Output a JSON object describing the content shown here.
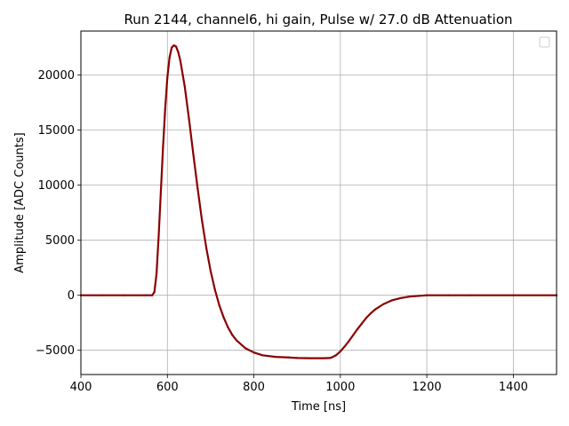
{
  "chart_data": {
    "type": "line",
    "title": "Run 2144, channel6, hi gain, Pulse w/ 27.0 dB Attenuation",
    "xlabel": "Time [ns]",
    "ylabel": "Amplitude [ADC Counts]",
    "xlim": [
      400,
      1500
    ],
    "ylim": [
      -7200,
      24000
    ],
    "x_ticks": [
      400,
      600,
      800,
      1000,
      1200,
      1400
    ],
    "y_ticks": [
      -5000,
      0,
      5000,
      10000,
      15000,
      20000
    ],
    "grid": true,
    "legend": {
      "placement": "upper-right",
      "entries": []
    },
    "colors": {
      "line": "#8b0000",
      "grid": "#b0b0b0"
    },
    "series": [
      {
        "x": [
          400,
          450,
          500,
          550,
          565,
          570,
          575,
          580,
          585,
          590,
          595,
          600,
          605,
          610,
          615,
          620,
          625,
          630,
          640,
          650,
          660,
          670,
          680,
          690,
          700,
          710,
          720,
          730,
          740,
          750,
          760,
          780,
          800,
          820,
          850,
          880,
          900,
          930,
          960,
          975,
          980,
          990,
          1000,
          1010,
          1020,
          1030,
          1040,
          1050,
          1060,
          1070,
          1080,
          1100,
          1120,
          1140,
          1160,
          1180,
          1200,
          1250,
          1300,
          1400,
          1500
        ],
        "y": [
          0,
          0,
          0,
          0,
          0,
          300,
          2000,
          5500,
          9500,
          13500,
          17000,
          19800,
          21600,
          22500,
          22700,
          22600,
          22100,
          21300,
          19000,
          16000,
          12800,
          9700,
          6800,
          4300,
          2200,
          500,
          -900,
          -2000,
          -2900,
          -3600,
          -4100,
          -4800,
          -5200,
          -5450,
          -5600,
          -5650,
          -5700,
          -5720,
          -5720,
          -5700,
          -5650,
          -5450,
          -5100,
          -4650,
          -4150,
          -3600,
          -3050,
          -2550,
          -2050,
          -1650,
          -1300,
          -800,
          -450,
          -250,
          -120,
          -60,
          0,
          0,
          0,
          0,
          0
        ]
      }
    ]
  }
}
